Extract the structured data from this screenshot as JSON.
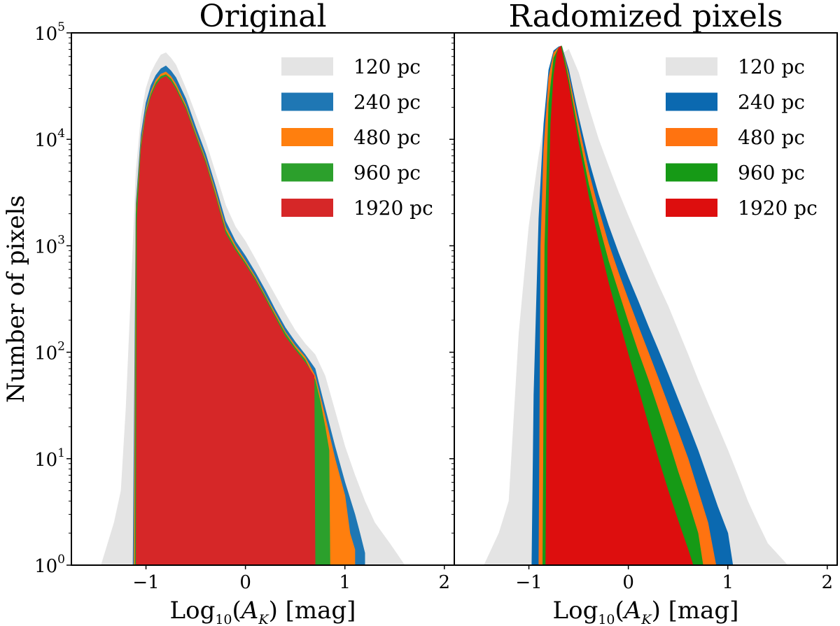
{
  "chart_data": {
    "type": "area",
    "ylabel": "Number of pixels",
    "yscale": "log",
    "ylim": [
      1,
      100000
    ],
    "xlim": [
      -1.75,
      2.1
    ],
    "xticks": [
      -1,
      0,
      1,
      2
    ],
    "xtick_labels": [
      "−1",
      "0",
      "1",
      "2"
    ],
    "yticks": [
      {
        "base": "10",
        "exp": "0"
      },
      {
        "base": "10",
        "exp": "1"
      },
      {
        "base": "10",
        "exp": "2"
      },
      {
        "base": "10",
        "exp": "3"
      },
      {
        "base": "10",
        "exp": "4"
      },
      {
        "base": "10",
        "exp": "5"
      }
    ],
    "xlabel_parts": {
      "log": "Log",
      "sub": "10",
      "open": "(",
      "var": "A",
      "var_sub": "K",
      "close": ")",
      "unit": " [mag]"
    },
    "legend_position": "top-right",
    "panels": [
      {
        "title": "Original",
        "series": [
          {
            "name": "120 pc",
            "color": "#e4e4e4",
            "x": [
              -1.45,
              -1.32,
              -1.25,
              -1.2,
              -1.15,
              -1.1,
              -1.05,
              -1.0,
              -0.95,
              -0.9,
              -0.85,
              -0.8,
              -0.75,
              -0.7,
              -0.6,
              -0.5,
              -0.4,
              -0.3,
              -0.2,
              -0.1,
              0.0,
              0.1,
              0.2,
              0.3,
              0.4,
              0.5,
              0.6,
              0.7,
              0.8,
              0.9,
              1.0,
              1.1,
              1.2,
              1.3,
              1.45,
              1.6
            ],
            "y": [
              1,
              2.5,
              5,
              30,
              350,
              5000,
              16000,
              30000,
              42000,
              52000,
              62000,
              65000,
              58000,
              50000,
              30000,
              17000,
              9500,
              4800,
              2400,
              1500,
              1100,
              750,
              500,
              340,
              230,
              160,
              120,
              95,
              60,
              28,
              13,
              7,
              4,
              2.5,
              1.6,
              1
            ]
          },
          {
            "name": "240 pc",
            "color": "#1f77b4",
            "x": [
              -1.13,
              -1.1,
              -1.05,
              -1.0,
              -0.95,
              -0.9,
              -0.85,
              -0.8,
              -0.75,
              -0.7,
              -0.6,
              -0.5,
              -0.4,
              -0.3,
              -0.2,
              -0.1,
              0.0,
              0.1,
              0.2,
              0.3,
              0.4,
              0.5,
              0.6,
              0.7,
              0.8,
              0.9,
              1.0,
              1.1,
              1.15,
              1.2
            ],
            "y": [
              1,
              2500,
              11000,
              22000,
              32000,
              40000,
              46000,
              49000,
              44000,
              38000,
              24000,
              13000,
              7300,
              3600,
              1700,
              1100,
              800,
              560,
              380,
              250,
              170,
              125,
              95,
              70,
              30,
              13,
              6,
              3,
              2,
              1.3
            ]
          },
          {
            "name": "480 pc",
            "color": "#ff7f0e",
            "x": [
              -1.12,
              -1.1,
              -1.05,
              -1.0,
              -0.95,
              -0.9,
              -0.85,
              -0.8,
              -0.75,
              -0.7,
              -0.6,
              -0.5,
              -0.4,
              -0.3,
              -0.2,
              -0.1,
              0.0,
              0.1,
              0.2,
              0.3,
              0.4,
              0.5,
              0.6,
              0.7,
              0.8,
              0.9,
              1.0,
              1.05,
              1.1
            ],
            "y": [
              1,
              2200,
              9500,
              19000,
              28000,
              36000,
              41000,
              43000,
              39000,
              33000,
              21000,
              11500,
              6500,
              3200,
              1500,
              1000,
              720,
              510,
              340,
              230,
              155,
              115,
              90,
              60,
              25,
              10,
              4.5,
              2,
              1.4
            ]
          },
          {
            "name": "960 pc",
            "color": "#2ca02c",
            "x": [
              -1.11,
              -1.1,
              -1.05,
              -1.0,
              -0.95,
              -0.9,
              -0.85,
              -0.8,
              -0.75,
              -0.7,
              -0.6,
              -0.5,
              -0.4,
              -0.3,
              -0.2,
              -0.1,
              0.0,
              0.1,
              0.2,
              0.3,
              0.4,
              0.5,
              0.6,
              0.7,
              0.75,
              0.8,
              0.84,
              0.85
            ],
            "y": [
              1,
              2000,
              8800,
              18000,
              26500,
              34000,
              39000,
              40500,
              37000,
              31000,
              20000,
              11000,
              6200,
              3000,
              1400,
              950,
              690,
              490,
              330,
              220,
              150,
              110,
              85,
              55,
              35,
              20,
              12,
              1
            ]
          },
          {
            "name": "1920 pc",
            "color": "#d62728",
            "x": [
              -1.1,
              -1.09,
              -1.05,
              -1.0,
              -0.95,
              -0.9,
              -0.85,
              -0.8,
              -0.75,
              -0.7,
              -0.6,
              -0.5,
              -0.4,
              -0.3,
              -0.2,
              -0.1,
              0.0,
              0.1,
              0.2,
              0.3,
              0.4,
              0.5,
              0.6,
              0.69,
              0.7
            ],
            "y": [
              1,
              1800,
              8000,
              17000,
              25000,
              32000,
              37000,
              39000,
              35000,
              29500,
              19000,
              10500,
              5900,
              2850,
              1300,
              900,
              660,
              470,
              315,
              210,
              140,
              105,
              80,
              60,
              1
            ]
          }
        ]
      },
      {
        "title": "Radomized pixels",
        "series": [
          {
            "name": "120 pc",
            "color": "#e4e4e4",
            "x": [
              -1.45,
              -1.3,
              -1.2,
              -1.1,
              -1.0,
              -0.9,
              -0.8,
              -0.7,
              -0.6,
              -0.5,
              -0.4,
              -0.3,
              -0.2,
              -0.1,
              0.0,
              0.1,
              0.2,
              0.3,
              0.4,
              0.5,
              0.6,
              0.7,
              0.8,
              0.9,
              1.0,
              1.1,
              1.2,
              1.3,
              1.4,
              1.6
            ],
            "y": [
              1,
              2,
              4,
              150,
              1500,
              7000,
              25000,
              60000,
              70000,
              42000,
              20000,
              10000,
              5600,
              3200,
              1900,
              1150,
              700,
              430,
              270,
              160,
              95,
              55,
              33,
              20,
              12,
              7,
              4,
              2.5,
              1.6,
              1
            ]
          },
          {
            "name": "240 pc",
            "color": "#0b69b0",
            "x": [
              -0.97,
              -0.95,
              -0.9,
              -0.85,
              -0.8,
              -0.75,
              -0.7,
              -0.67,
              -0.6,
              -0.5,
              -0.4,
              -0.3,
              -0.2,
              -0.1,
              0.0,
              0.1,
              0.2,
              0.3,
              0.4,
              0.5,
              0.6,
              0.7,
              0.8,
              0.9,
              1.0,
              1.05
            ],
            "y": [
              1,
              40,
              1800,
              14000,
              45000,
              68000,
              74000,
              75000,
              45000,
              16000,
              6400,
              3000,
              1550,
              860,
              500,
              300,
              175,
              105,
              62,
              36,
              21,
              12,
              6.5,
              3.5,
              2,
              1
            ]
          },
          {
            "name": "480 pc",
            "color": "#ff7310",
            "x": [
              -0.9,
              -0.88,
              -0.85,
              -0.8,
              -0.75,
              -0.7,
              -0.67,
              -0.6,
              -0.5,
              -0.4,
              -0.3,
              -0.2,
              -0.1,
              0.0,
              0.1,
              0.2,
              0.3,
              0.4,
              0.5,
              0.6,
              0.7,
              0.8,
              0.88
            ],
            "y": [
              1,
              1000,
              8000,
              38000,
              65000,
              73000,
              75000,
              40000,
              13500,
              5000,
              2200,
              1050,
              560,
              310,
              175,
              100,
              57,
              32,
              18,
              10,
              5,
              2.5,
              1
            ]
          },
          {
            "name": "960 pc",
            "color": "#169a16",
            "x": [
              -0.86,
              -0.84,
              -0.8,
              -0.75,
              -0.7,
              -0.67,
              -0.6,
              -0.5,
              -0.4,
              -0.3,
              -0.2,
              -0.1,
              0.0,
              0.1,
              0.2,
              0.3,
              0.4,
              0.5,
              0.6,
              0.7,
              0.75
            ],
            "y": [
              1,
              1000,
              22000,
              58000,
              72000,
              75000,
              36000,
              11000,
              3800,
              1600,
              720,
              370,
              190,
              100,
              55,
              29,
              15,
              7.5,
              4,
              2,
              1
            ]
          },
          {
            "name": "1920 pc",
            "color": "#dd0e0e",
            "x": [
              -0.83,
              -0.81,
              -0.78,
              -0.75,
              -0.72,
              -0.7,
              -0.68,
              -0.6,
              -0.5,
              -0.4,
              -0.3,
              -0.2,
              -0.1,
              0.0,
              0.1,
              0.2,
              0.3,
              0.4,
              0.5,
              0.6,
              0.65
            ],
            "y": [
              1,
              1000,
              14000,
              40000,
              62000,
              72000,
              75000,
              32000,
              9000,
              2900,
              1100,
              450,
              205,
              95,
              45,
              21,
              10,
              5,
              2.6,
              1.4,
              1
            ]
          }
        ]
      }
    ]
  }
}
